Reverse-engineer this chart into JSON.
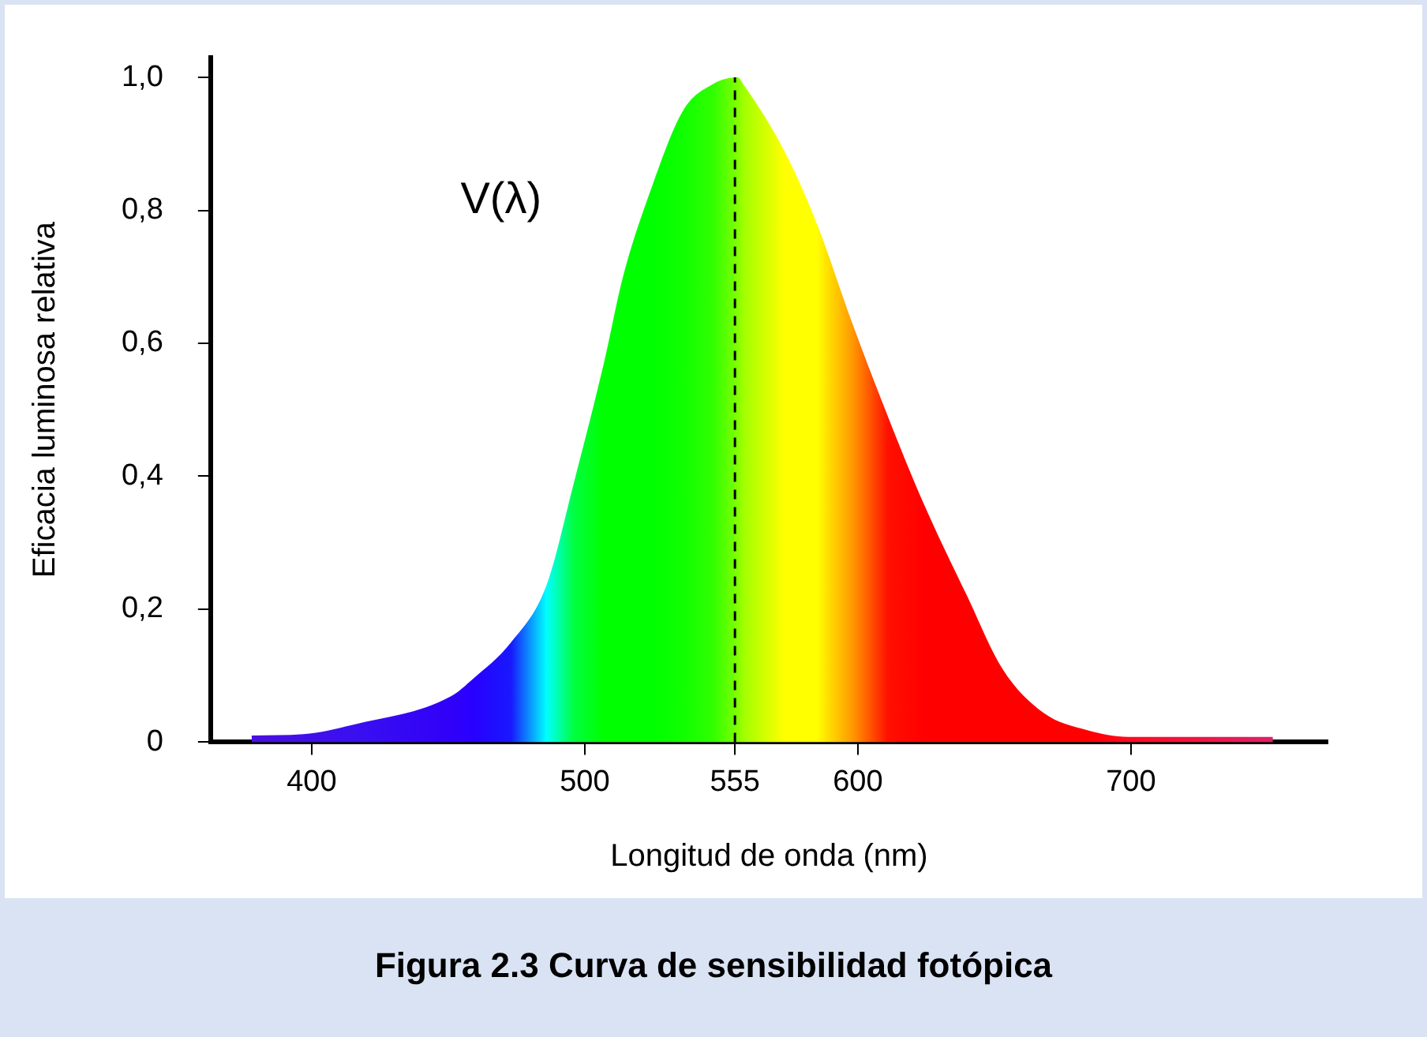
{
  "chart_data": {
    "type": "area",
    "title": "Figura 2.3 Curva de sensibilidad fotópica",
    "xlabel": "Longitud de onda (nm)",
    "ylabel": "Eficacia luminosa relativa",
    "x": [
      378,
      397,
      415,
      451,
      459,
      473,
      486,
      496,
      507,
      514,
      525,
      536,
      547,
      556,
      558,
      573,
      585,
      598,
      611,
      624,
      640,
      653,
      668,
      684,
      699,
      752
    ],
    "values": [
      0.01,
      0.012,
      0.026,
      0.069,
      0.095,
      0.15,
      0.236,
      0.39,
      0.57,
      0.7,
      0.84,
      0.95,
      0.99,
      1.0,
      0.99,
      0.89,
      0.78,
      0.63,
      0.49,
      0.36,
      0.22,
      0.11,
      0.044,
      0.018,
      0.008,
      0.008
    ],
    "colors": [
      "#4a10e0",
      "#4210e8",
      "#3a10f0",
      "#3000f8",
      "#2800ff",
      "#1818ff",
      "#00ffff",
      "#00ff40",
      "#00ff00",
      "#00ff00",
      "#00ff00",
      "#10ff00",
      "#30ff00",
      "#80ff00",
      "#a0ff00",
      "#ffff00",
      "#ffff00",
      "#ff9900",
      "#ff1000",
      "#ff0000",
      "#ff0000",
      "#ff0000",
      "#ff0000",
      "#ff0000",
      "#ff0a20",
      "#e0206a"
    ],
    "xlim": [
      363,
      772
    ],
    "xticks": [
      400,
      500,
      555,
      600,
      700
    ],
    "ylim": [
      0,
      1.03
    ],
    "yticks": [
      0,
      {
        "value": 0.2,
        "label": "0,2"
      },
      {
        "value": 0.4,
        "label": "0,4"
      },
      {
        "value": 0.6,
        "label": "0,6"
      },
      {
        "value": 0.8,
        "label": "0,8"
      },
      {
        "value": 1,
        "label": "1,0"
      }
    ],
    "ref_lines": [
      {
        "axis": "x",
        "value": 555,
        "color": "#000000",
        "line_style": "dashed"
      }
    ],
    "annotations": [
      "V(λ)"
    ],
    "legend": false
  }
}
